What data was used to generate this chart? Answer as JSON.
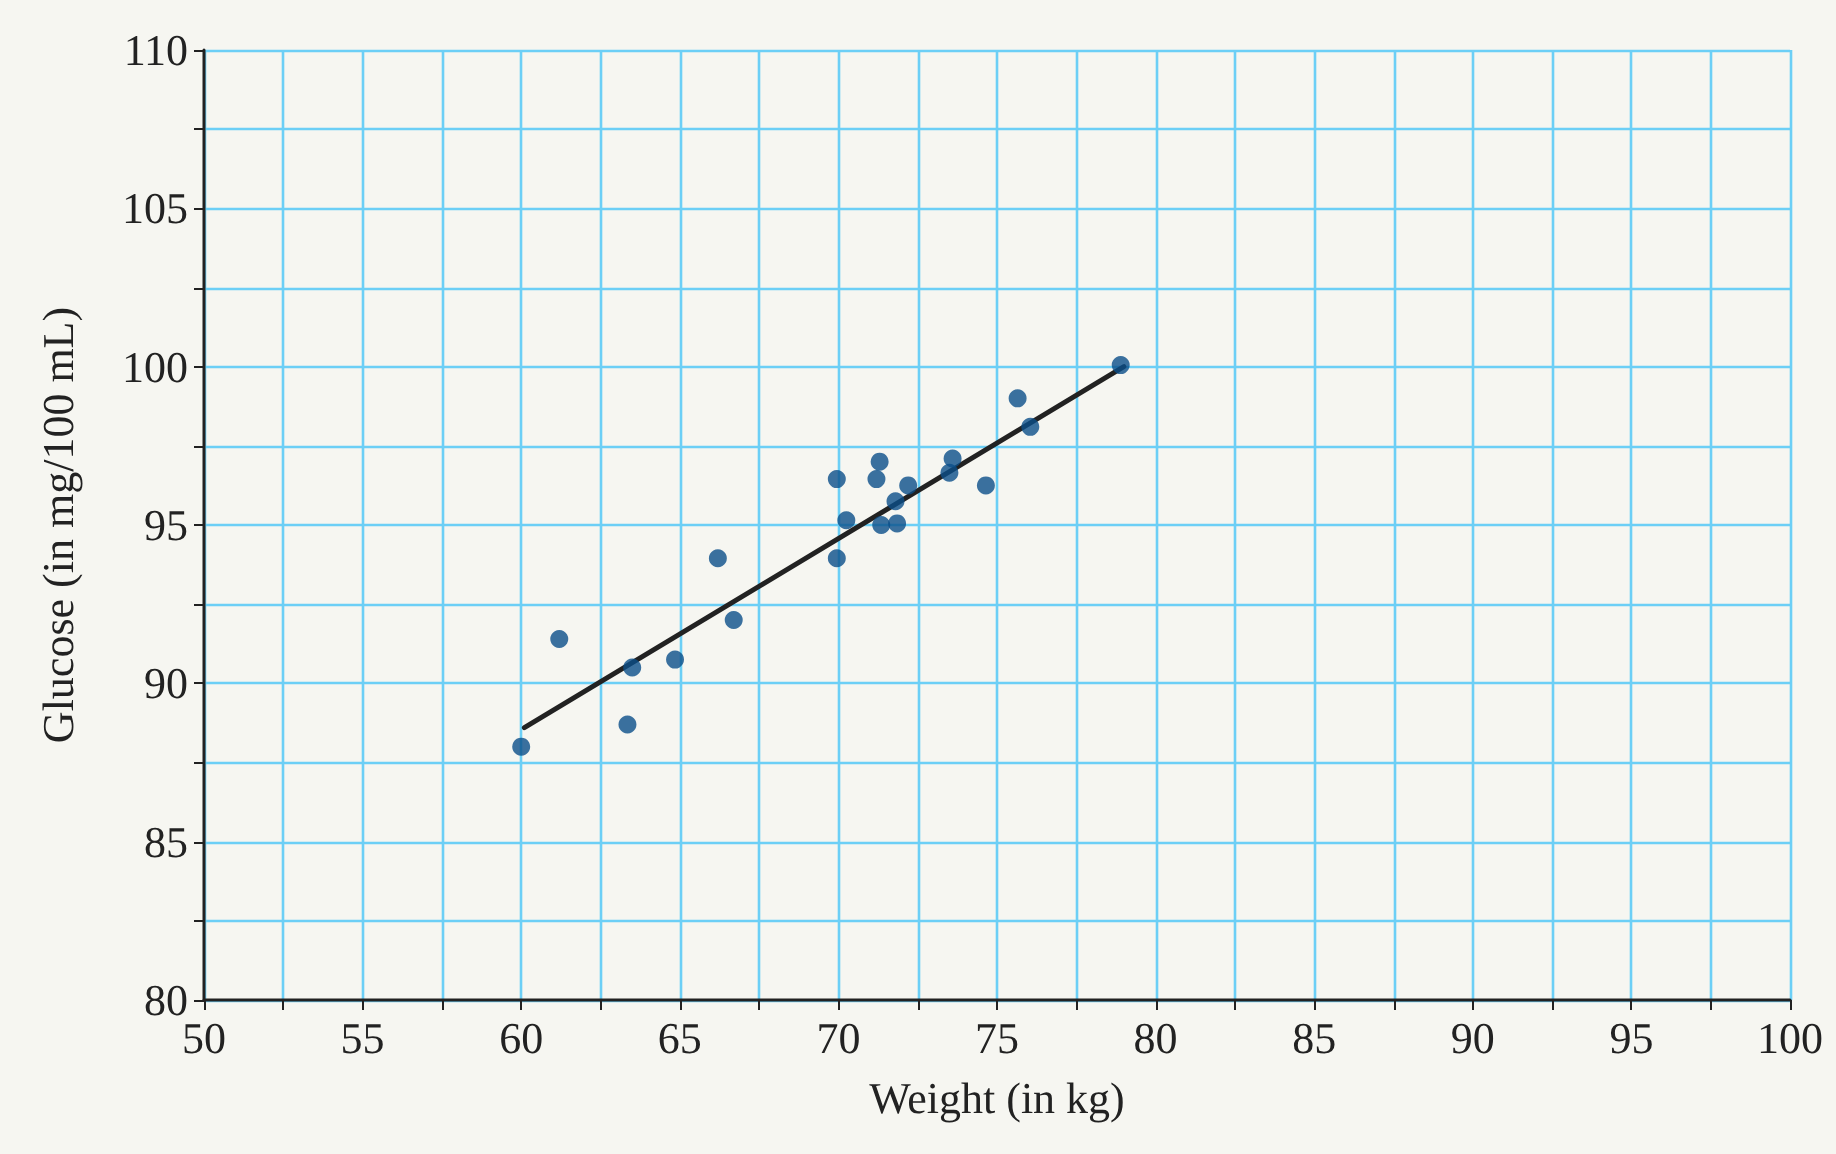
{
  "chart_data": {
    "type": "scatter",
    "xlabel": "Weight (in kg)",
    "ylabel": "Glucose (in mg/100 mL)",
    "xlim": [
      50,
      100
    ],
    "ylim": [
      80,
      110
    ],
    "xticks": [
      50,
      {
        "value": 52.5,
        "label": null
      },
      55,
      {
        "value": 57.5,
        "label": null
      },
      60,
      {
        "value": 62.5,
        "label": null
      },
      65,
      {
        "value": 67.5,
        "label": null
      },
      70,
      {
        "value": 72.5,
        "label": null
      },
      75,
      {
        "value": 77.5,
        "label": null
      },
      80,
      {
        "value": 82.5,
        "label": null
      },
      85,
      {
        "value": 87.5,
        "label": null
      },
      90,
      {
        "value": 92.5,
        "label": null
      },
      95,
      {
        "value": 97.5,
        "label": null
      },
      100
    ],
    "yticks": [
      80,
      {
        "value": 82.5,
        "label": null
      },
      85,
      {
        "value": 87.5,
        "label": null
      },
      90,
      {
        "value": 92.5,
        "label": null
      },
      95,
      {
        "value": 97.5,
        "label": null
      },
      100,
      {
        "value": 102.5,
        "label": null
      },
      105,
      {
        "value": 107.5,
        "label": null
      },
      110
    ],
    "grid": true,
    "marker": "circle",
    "series": [
      {
        "color": "#0b4f8a",
        "x": [
          60,
          61.2,
          63.5,
          63.35,
          64.85,
          66.2,
          66.7,
          69.95,
          69.95,
          70.25,
          71.2,
          71.3,
          71.35,
          71.85,
          71.8,
          72.2,
          73.5,
          73.6,
          74.65,
          75.65,
          76.05,
          78.9
        ],
        "values": [
          88,
          91.4,
          90.5,
          88.7,
          90.75,
          93.95,
          92,
          96.45,
          93.95,
          95.15,
          96.45,
          97,
          95,
          95.05,
          95.75,
          96.25,
          96.65,
          97.1,
          96.25,
          99,
          98.1,
          100.05
        ]
      },
      {
        "type": "line",
        "color": "#222222",
        "marker": "none",
        "x": [
          60.1,
          79
        ],
        "values": [
          88.6,
          100
        ]
      }
    ]
  }
}
